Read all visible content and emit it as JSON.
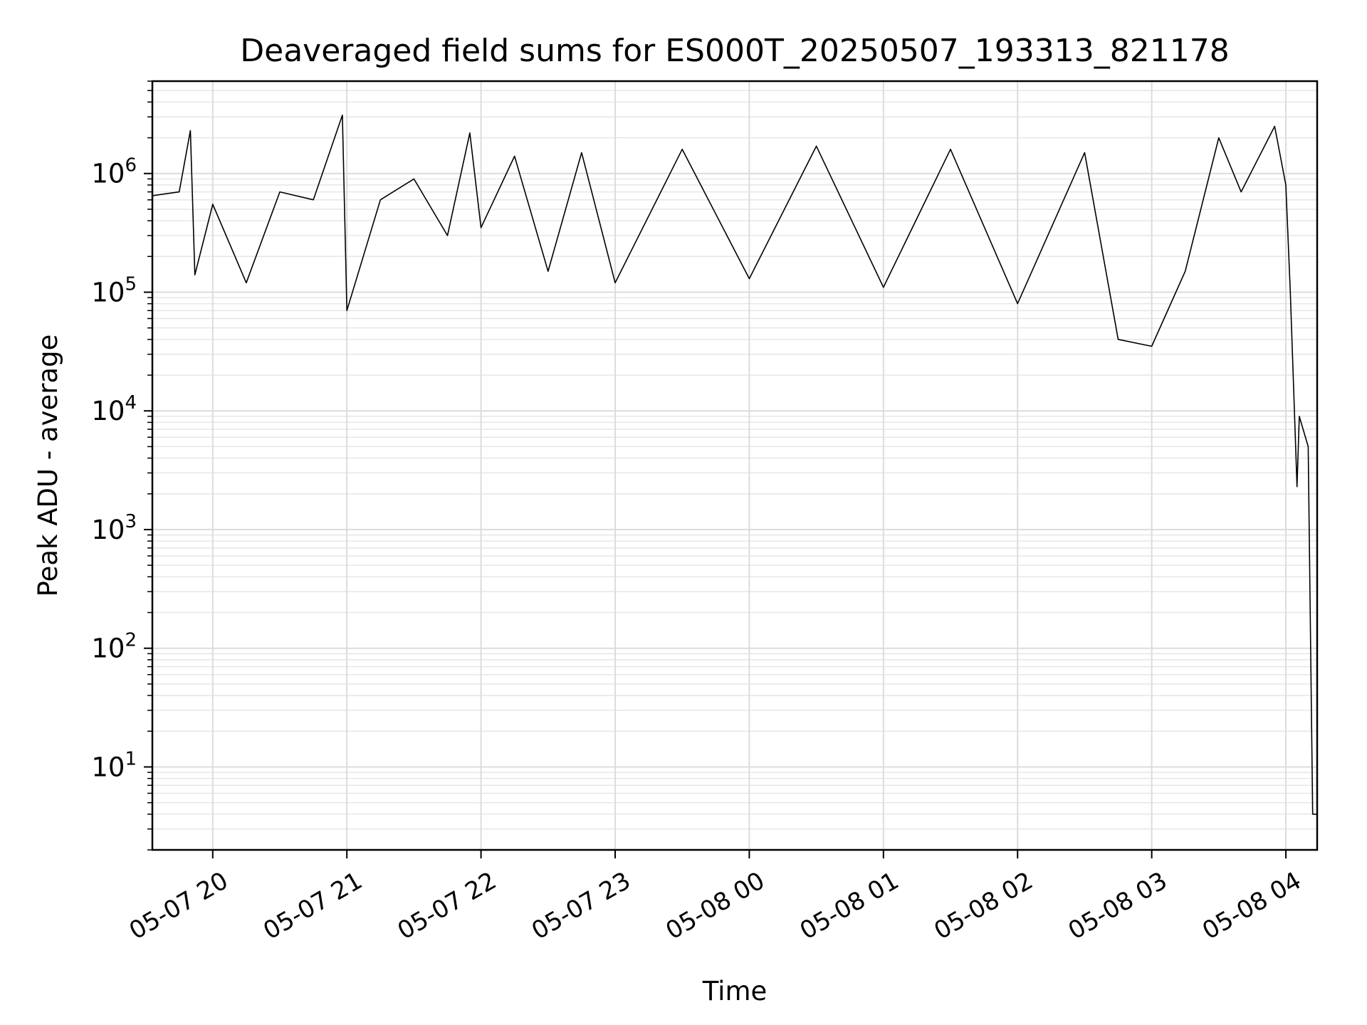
{
  "chart_data": {
    "type": "line",
    "title": "Deaveraged field sums for ES000T_20250507_193313_821178",
    "xlabel": "Time",
    "ylabel": "Peak ADU - average",
    "yscale": "log",
    "ylim": [
      2,
      6000000
    ],
    "xlim": [
      "2025-05-07 19:33",
      "2025-05-08 04:14"
    ],
    "grid": true,
    "line_color": "#000000",
    "x_ticks": [
      {
        "label": "05-07 20",
        "time": "2025-05-07 20:00"
      },
      {
        "label": "05-07 21",
        "time": "2025-05-07 21:00"
      },
      {
        "label": "05-07 22",
        "time": "2025-05-07 22:00"
      },
      {
        "label": "05-07 23",
        "time": "2025-05-07 23:00"
      },
      {
        "label": "05-08 00",
        "time": "2025-05-08 00:00"
      },
      {
        "label": "05-08 01",
        "time": "2025-05-08 01:00"
      },
      {
        "label": "05-08 02",
        "time": "2025-05-08 02:00"
      },
      {
        "label": "05-08 03",
        "time": "2025-05-08 03:00"
      },
      {
        "label": "05-08 04",
        "time": "2025-05-08 04:00"
      }
    ],
    "y_ticks": [
      {
        "base": "10",
        "exp": "1",
        "value": 10
      },
      {
        "base": "10",
        "exp": "2",
        "value": 100
      },
      {
        "base": "10",
        "exp": "3",
        "value": 1000
      },
      {
        "base": "10",
        "exp": "4",
        "value": 10000
      },
      {
        "base": "10",
        "exp": "5",
        "value": 100000
      },
      {
        "base": "10",
        "exp": "6",
        "value": 1000000
      }
    ],
    "series": [
      {
        "points": [
          [
            "2025-05-07 19:33",
            650000
          ],
          [
            "2025-05-07 19:45",
            700000
          ],
          [
            "2025-05-07 19:50",
            2300000
          ],
          [
            "2025-05-07 19:52",
            140000
          ],
          [
            "2025-05-07 20:00",
            550000
          ],
          [
            "2025-05-07 20:15",
            120000
          ],
          [
            "2025-05-07 20:30",
            700000
          ],
          [
            "2025-05-07 20:45",
            600000
          ],
          [
            "2025-05-07 20:58",
            3100000
          ],
          [
            "2025-05-07 21:00",
            70000
          ],
          [
            "2025-05-07 21:15",
            600000
          ],
          [
            "2025-05-07 21:30",
            900000
          ],
          [
            "2025-05-07 21:45",
            300000
          ],
          [
            "2025-05-07 21:55",
            2200000
          ],
          [
            "2025-05-07 22:00",
            350000
          ],
          [
            "2025-05-07 22:15",
            1400000
          ],
          [
            "2025-05-07 22:30",
            150000
          ],
          [
            "2025-05-07 22:45",
            1500000
          ],
          [
            "2025-05-07 23:00",
            120000
          ],
          [
            "2025-05-07 23:30",
            1600000
          ],
          [
            "2025-05-08 00:00",
            130000
          ],
          [
            "2025-05-08 00:30",
            1700000
          ],
          [
            "2025-05-08 01:00",
            110000
          ],
          [
            "2025-05-08 01:30",
            1600000
          ],
          [
            "2025-05-08 02:00",
            80000
          ],
          [
            "2025-05-08 02:30",
            1500000
          ],
          [
            "2025-05-08 02:45",
            40000
          ],
          [
            "2025-05-08 03:00",
            35000
          ],
          [
            "2025-05-08 03:15",
            150000
          ],
          [
            "2025-05-08 03:30",
            2000000
          ],
          [
            "2025-05-08 03:40",
            700000
          ],
          [
            "2025-05-08 03:55",
            2500000
          ],
          [
            "2025-05-08 04:00",
            800000
          ],
          [
            "2025-05-08 04:02",
            100000
          ],
          [
            "2025-05-08 04:04",
            8000
          ],
          [
            "2025-05-08 04:05",
            2300
          ],
          [
            "2025-05-08 04:06",
            9000
          ],
          [
            "2025-05-08 04:10",
            5000
          ],
          [
            "2025-05-08 04:12",
            4
          ],
          [
            "2025-05-08 04:14",
            4
          ]
        ]
      }
    ]
  }
}
